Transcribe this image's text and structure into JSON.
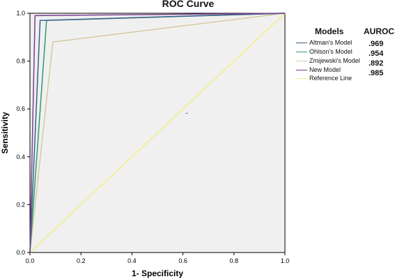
{
  "chart_data": {
    "type": "line",
    "title": "ROC Curve",
    "xlabel": "1- Specificity",
    "ylabel": "Sensitivity",
    "xlim": [
      0,
      1
    ],
    "ylim": [
      0,
      1
    ],
    "xticks": [
      "0.0",
      "0.2",
      "0.4",
      "0.6",
      "0.8",
      "1.0"
    ],
    "yticks": [
      "0.0",
      "0.2",
      "0.4",
      "0.6",
      "0.8",
      "1.0"
    ],
    "grid": false,
    "legend_position": "right",
    "legend_header": {
      "models": "Models",
      "auroc": "AUROC"
    },
    "auroc_values": [
      ".969",
      ".954",
      ".892",
      ".985"
    ],
    "series": [
      {
        "name": "Altman's Model",
        "color": "#3b5f8a",
        "x": [
          0,
          0.04,
          1
        ],
        "y": [
          0,
          0.97,
          1
        ]
      },
      {
        "name": "Ohlson's Model",
        "color": "#2e9a6e",
        "x": [
          0,
          0.065,
          1
        ],
        "y": [
          0,
          0.97,
          1
        ]
      },
      {
        "name": "Zmijewski's Model",
        "color": "#d6c9a4",
        "x": [
          0,
          0.09,
          1
        ],
        "y": [
          0,
          0.88,
          1
        ]
      },
      {
        "name": "New Model",
        "color": "#7a3f8e",
        "x": [
          0,
          0.02,
          1
        ],
        "y": [
          0,
          0.99,
          1
        ]
      },
      {
        "name": "Reference Line",
        "color": "#f3ef80",
        "x": [
          0,
          1
        ],
        "y": [
          0,
          1
        ]
      }
    ],
    "annotation": "-"
  }
}
